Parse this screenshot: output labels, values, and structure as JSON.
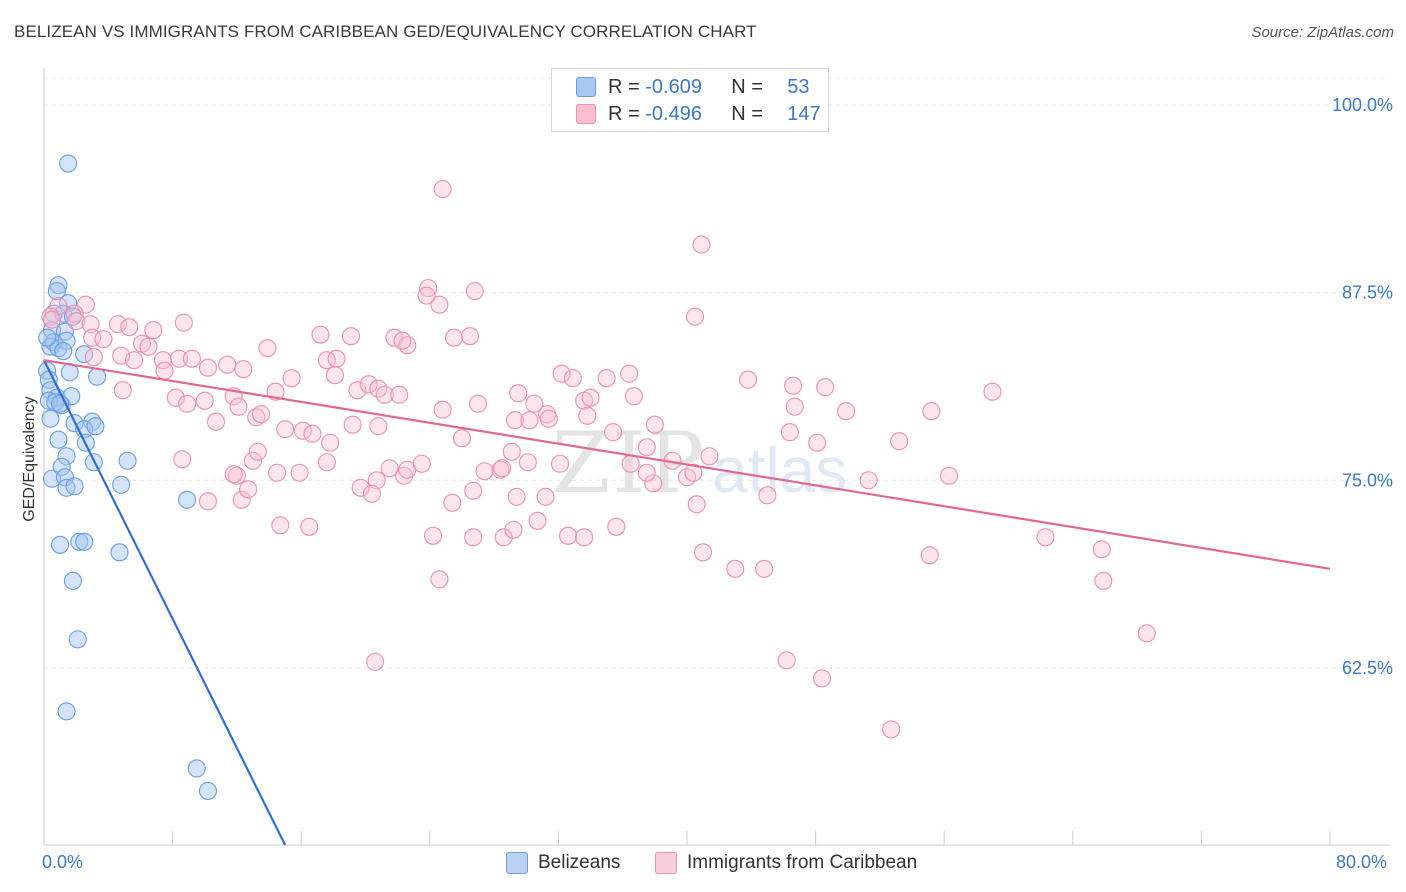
{
  "title": "BELIZEAN VS IMMIGRANTS FROM CARIBBEAN GED/EQUIVALENCY CORRELATION CHART",
  "source": "Source: ZipAtlas.com",
  "watermark": {
    "zip": "ZIP",
    "atlas": "atlas"
  },
  "legend": {
    "rows": [
      {
        "r_label": "R = ",
        "r_value": "-0.609",
        "n_label": "N = ",
        "n_value": "53",
        "color": "#a9c8f0",
        "border": "#6b9ee0"
      },
      {
        "r_label": "R = ",
        "r_value": "-0.496",
        "n_label": "N = ",
        "n_value": "147",
        "color": "#f7bfd0",
        "border": "#ee8fae"
      }
    ]
  },
  "bottom_legend": {
    "items": [
      {
        "label": "Belizeans",
        "color": "#b9d2f4",
        "border": "#6b9ee0"
      },
      {
        "label": "Immigrants from Caribbean",
        "color": "#f9cddb",
        "border": "#ee8fae"
      }
    ]
  },
  "chart_data": {
    "type": "scatter",
    "title": "BELIZEAN VS IMMIGRANTS FROM CARIBBEAN GED/EQUIVALENCY CORRELATION CHART",
    "xlabel": "",
    "ylabel": "GED/Equivalency",
    "xlim": [
      0,
      80
    ],
    "ylim": [
      50.7,
      101.8
    ],
    "x_tick_labels": [
      "0.0%",
      "80.0%"
    ],
    "y_ticks": [
      62.5,
      75.0,
      87.5,
      100.0
    ],
    "y_tick_labels": [
      "62.5%",
      "75.0%",
      "87.5%",
      "100.0%"
    ],
    "grid": true,
    "series": [
      {
        "name": "Belizeans",
        "color": "#6b9ee0",
        "fill": "rgba(160,195,240,0.45)",
        "trend": {
          "x": [
            0.0,
            15.0
          ],
          "y": [
            83.0,
            50.7
          ]
        },
        "points": [
          [
            1.5,
            96.1
          ],
          [
            0.9,
            88.0
          ],
          [
            0.8,
            87.6
          ],
          [
            1.5,
            86.8
          ],
          [
            0.6,
            86.1
          ],
          [
            1.2,
            86.1
          ],
          [
            1.8,
            85.9
          ],
          [
            0.5,
            85.0
          ],
          [
            1.3,
            84.9
          ],
          [
            0.4,
            83.9
          ],
          [
            0.6,
            84.2
          ],
          [
            0.9,
            83.8
          ],
          [
            1.4,
            84.3
          ],
          [
            1.2,
            83.6
          ],
          [
            2.5,
            83.4
          ],
          [
            0.2,
            82.3
          ],
          [
            1.6,
            82.2
          ],
          [
            3.3,
            81.9
          ],
          [
            0.3,
            81.7
          ],
          [
            0.4,
            81.0
          ],
          [
            0.8,
            80.5
          ],
          [
            1.1,
            80.0
          ],
          [
            1.7,
            80.6
          ],
          [
            0.3,
            80.3
          ],
          [
            0.7,
            80.2
          ],
          [
            1.0,
            80.1
          ],
          [
            3.0,
            78.9
          ],
          [
            1.9,
            78.8
          ],
          [
            2.5,
            78.4
          ],
          [
            3.2,
            78.6
          ],
          [
            0.4,
            79.1
          ],
          [
            0.9,
            77.7
          ],
          [
            2.6,
            77.5
          ],
          [
            1.4,
            76.6
          ],
          [
            3.1,
            76.2
          ],
          [
            5.2,
            76.3
          ],
          [
            1.1,
            75.9
          ],
          [
            0.5,
            75.1
          ],
          [
            1.3,
            75.2
          ],
          [
            1.4,
            74.5
          ],
          [
            1.9,
            74.6
          ],
          [
            4.8,
            74.7
          ],
          [
            8.9,
            73.7
          ],
          [
            2.2,
            70.9
          ],
          [
            2.5,
            70.9
          ],
          [
            1.0,
            70.7
          ],
          [
            4.7,
            70.2
          ],
          [
            1.8,
            68.3
          ],
          [
            2.1,
            64.4
          ],
          [
            1.4,
            59.6
          ],
          [
            9.5,
            55.8
          ],
          [
            10.2,
            54.3
          ],
          [
            0.2,
            84.5
          ]
        ]
      },
      {
        "name": "Immigrants from Caribbean",
        "color": "#ee8fae",
        "fill": "rgba(248,190,210,0.40)",
        "trend": {
          "x": [
            0.0,
            80.0
          ],
          "y": [
            83.0,
            69.1
          ]
        },
        "points": [
          [
            24.8,
            94.4
          ],
          [
            40.9,
            90.7
          ],
          [
            0.9,
            86.6
          ],
          [
            2.6,
            86.7
          ],
          [
            1.9,
            86.1
          ],
          [
            0.4,
            85.9
          ],
          [
            2.0,
            85.6
          ],
          [
            0.5,
            85.7
          ],
          [
            2.9,
            85.4
          ],
          [
            4.6,
            85.4
          ],
          [
            3.0,
            84.5
          ],
          [
            5.3,
            85.2
          ],
          [
            6.8,
            85.0
          ],
          [
            8.7,
            85.5
          ],
          [
            3.7,
            84.4
          ],
          [
            6.1,
            84.1
          ],
          [
            6.5,
            83.9
          ],
          [
            4.8,
            83.3
          ],
          [
            3.1,
            83.2
          ],
          [
            5.6,
            83.0
          ],
          [
            7.4,
            83.0
          ],
          [
            8.4,
            83.1
          ],
          [
            7.5,
            82.3
          ],
          [
            9.2,
            83.1
          ],
          [
            10.2,
            82.5
          ],
          [
            11.4,
            82.7
          ],
          [
            12.4,
            82.4
          ],
          [
            13.9,
            83.8
          ],
          [
            17.2,
            84.7
          ],
          [
            17.6,
            83.0
          ],
          [
            18.2,
            83.1
          ],
          [
            19.1,
            84.6
          ],
          [
            21.8,
            84.5
          ],
          [
            22.6,
            84.0
          ],
          [
            22.3,
            84.3
          ],
          [
            25.5,
            84.5
          ],
          [
            26.5,
            84.6
          ],
          [
            23.9,
            87.8
          ],
          [
            24.6,
            86.7
          ],
          [
            23.8,
            87.3
          ],
          [
            26.8,
            87.6
          ],
          [
            40.5,
            85.9
          ],
          [
            4.9,
            81.0
          ],
          [
            8.2,
            80.5
          ],
          [
            8.9,
            80.1
          ],
          [
            10.0,
            80.3
          ],
          [
            11.8,
            80.6
          ],
          [
            14.4,
            80.9
          ],
          [
            15.4,
            81.8
          ],
          [
            18.1,
            82.0
          ],
          [
            19.5,
            81.0
          ],
          [
            20.2,
            81.4
          ],
          [
            20.8,
            81.1
          ],
          [
            21.2,
            80.7
          ],
          [
            22.1,
            80.7
          ],
          [
            24.8,
            79.7
          ],
          [
            27.0,
            80.1
          ],
          [
            29.5,
            80.8
          ],
          [
            30.5,
            80.1
          ],
          [
            31.3,
            79.4
          ],
          [
            32.2,
            82.1
          ],
          [
            32.9,
            81.8
          ],
          [
            33.6,
            80.3
          ],
          [
            35.0,
            81.8
          ],
          [
            36.4,
            82.1
          ],
          [
            36.7,
            80.6
          ],
          [
            34.0,
            80.5
          ],
          [
            43.8,
            81.7
          ],
          [
            46.7,
            79.9
          ],
          [
            46.6,
            81.3
          ],
          [
            48.6,
            81.2
          ],
          [
            49.9,
            79.6
          ],
          [
            55.2,
            79.6
          ],
          [
            59.0,
            80.9
          ],
          [
            10.7,
            78.9
          ],
          [
            12.1,
            79.9
          ],
          [
            13.2,
            79.2
          ],
          [
            13.5,
            79.4
          ],
          [
            15.0,
            78.4
          ],
          [
            16.1,
            78.3
          ],
          [
            16.7,
            78.1
          ],
          [
            17.8,
            77.5
          ],
          [
            19.2,
            78.7
          ],
          [
            20.8,
            78.6
          ],
          [
            26.0,
            77.8
          ],
          [
            29.3,
            79.0
          ],
          [
            29.1,
            76.9
          ],
          [
            30.2,
            79.0
          ],
          [
            31.4,
            79.1
          ],
          [
            33.8,
            79.3
          ],
          [
            35.4,
            78.2
          ],
          [
            38.0,
            78.7
          ],
          [
            37.5,
            77.2
          ],
          [
            46.4,
            78.2
          ],
          [
            48.1,
            77.5
          ],
          [
            53.2,
            77.6
          ],
          [
            8.6,
            76.4
          ],
          [
            12.0,
            75.3
          ],
          [
            13.0,
            76.3
          ],
          [
            13.3,
            76.9
          ],
          [
            14.5,
            75.5
          ],
          [
            15.9,
            75.5
          ],
          [
            17.6,
            76.2
          ],
          [
            20.7,
            75.0
          ],
          [
            21.5,
            75.8
          ],
          [
            22.4,
            75.3
          ],
          [
            22.6,
            75.7
          ],
          [
            23.5,
            76.1
          ],
          [
            27.4,
            75.6
          ],
          [
            28.4,
            75.7
          ],
          [
            28.5,
            75.8
          ],
          [
            30.1,
            76.2
          ],
          [
            32.1,
            76.1
          ],
          [
            36.5,
            76.1
          ],
          [
            37.9,
            74.8
          ],
          [
            37.5,
            75.5
          ],
          [
            39.1,
            76.3
          ],
          [
            40.0,
            75.2
          ],
          [
            40.4,
            75.5
          ],
          [
            41.4,
            76.6
          ],
          [
            51.3,
            75.0
          ],
          [
            56.3,
            75.3
          ],
          [
            10.2,
            73.6
          ],
          [
            11.8,
            75.4
          ],
          [
            12.3,
            73.7
          ],
          [
            12.7,
            74.4
          ],
          [
            14.7,
            72.0
          ],
          [
            16.5,
            71.9
          ],
          [
            19.7,
            74.5
          ],
          [
            20.4,
            74.1
          ],
          [
            26.7,
            74.3
          ],
          [
            25.4,
            73.5
          ],
          [
            29.4,
            73.9
          ],
          [
            31.2,
            73.9
          ],
          [
            40.6,
            73.4
          ],
          [
            45.0,
            74.0
          ],
          [
            28.6,
            71.2
          ],
          [
            26.7,
            71.2
          ],
          [
            24.2,
            71.3
          ],
          [
            29.2,
            71.7
          ],
          [
            30.7,
            72.3
          ],
          [
            32.6,
            71.3
          ],
          [
            33.6,
            71.2
          ],
          [
            35.6,
            71.9
          ],
          [
            43.0,
            69.1
          ],
          [
            44.8,
            69.1
          ],
          [
            24.6,
            68.4
          ],
          [
            55.1,
            70.0
          ],
          [
            62.3,
            71.2
          ],
          [
            65.8,
            70.4
          ],
          [
            65.9,
            68.3
          ],
          [
            68.6,
            64.8
          ],
          [
            20.6,
            62.9
          ],
          [
            46.2,
            63.0
          ],
          [
            48.4,
            61.8
          ],
          [
            52.7,
            58.4
          ],
          [
            41.0,
            70.2
          ]
        ]
      }
    ]
  }
}
